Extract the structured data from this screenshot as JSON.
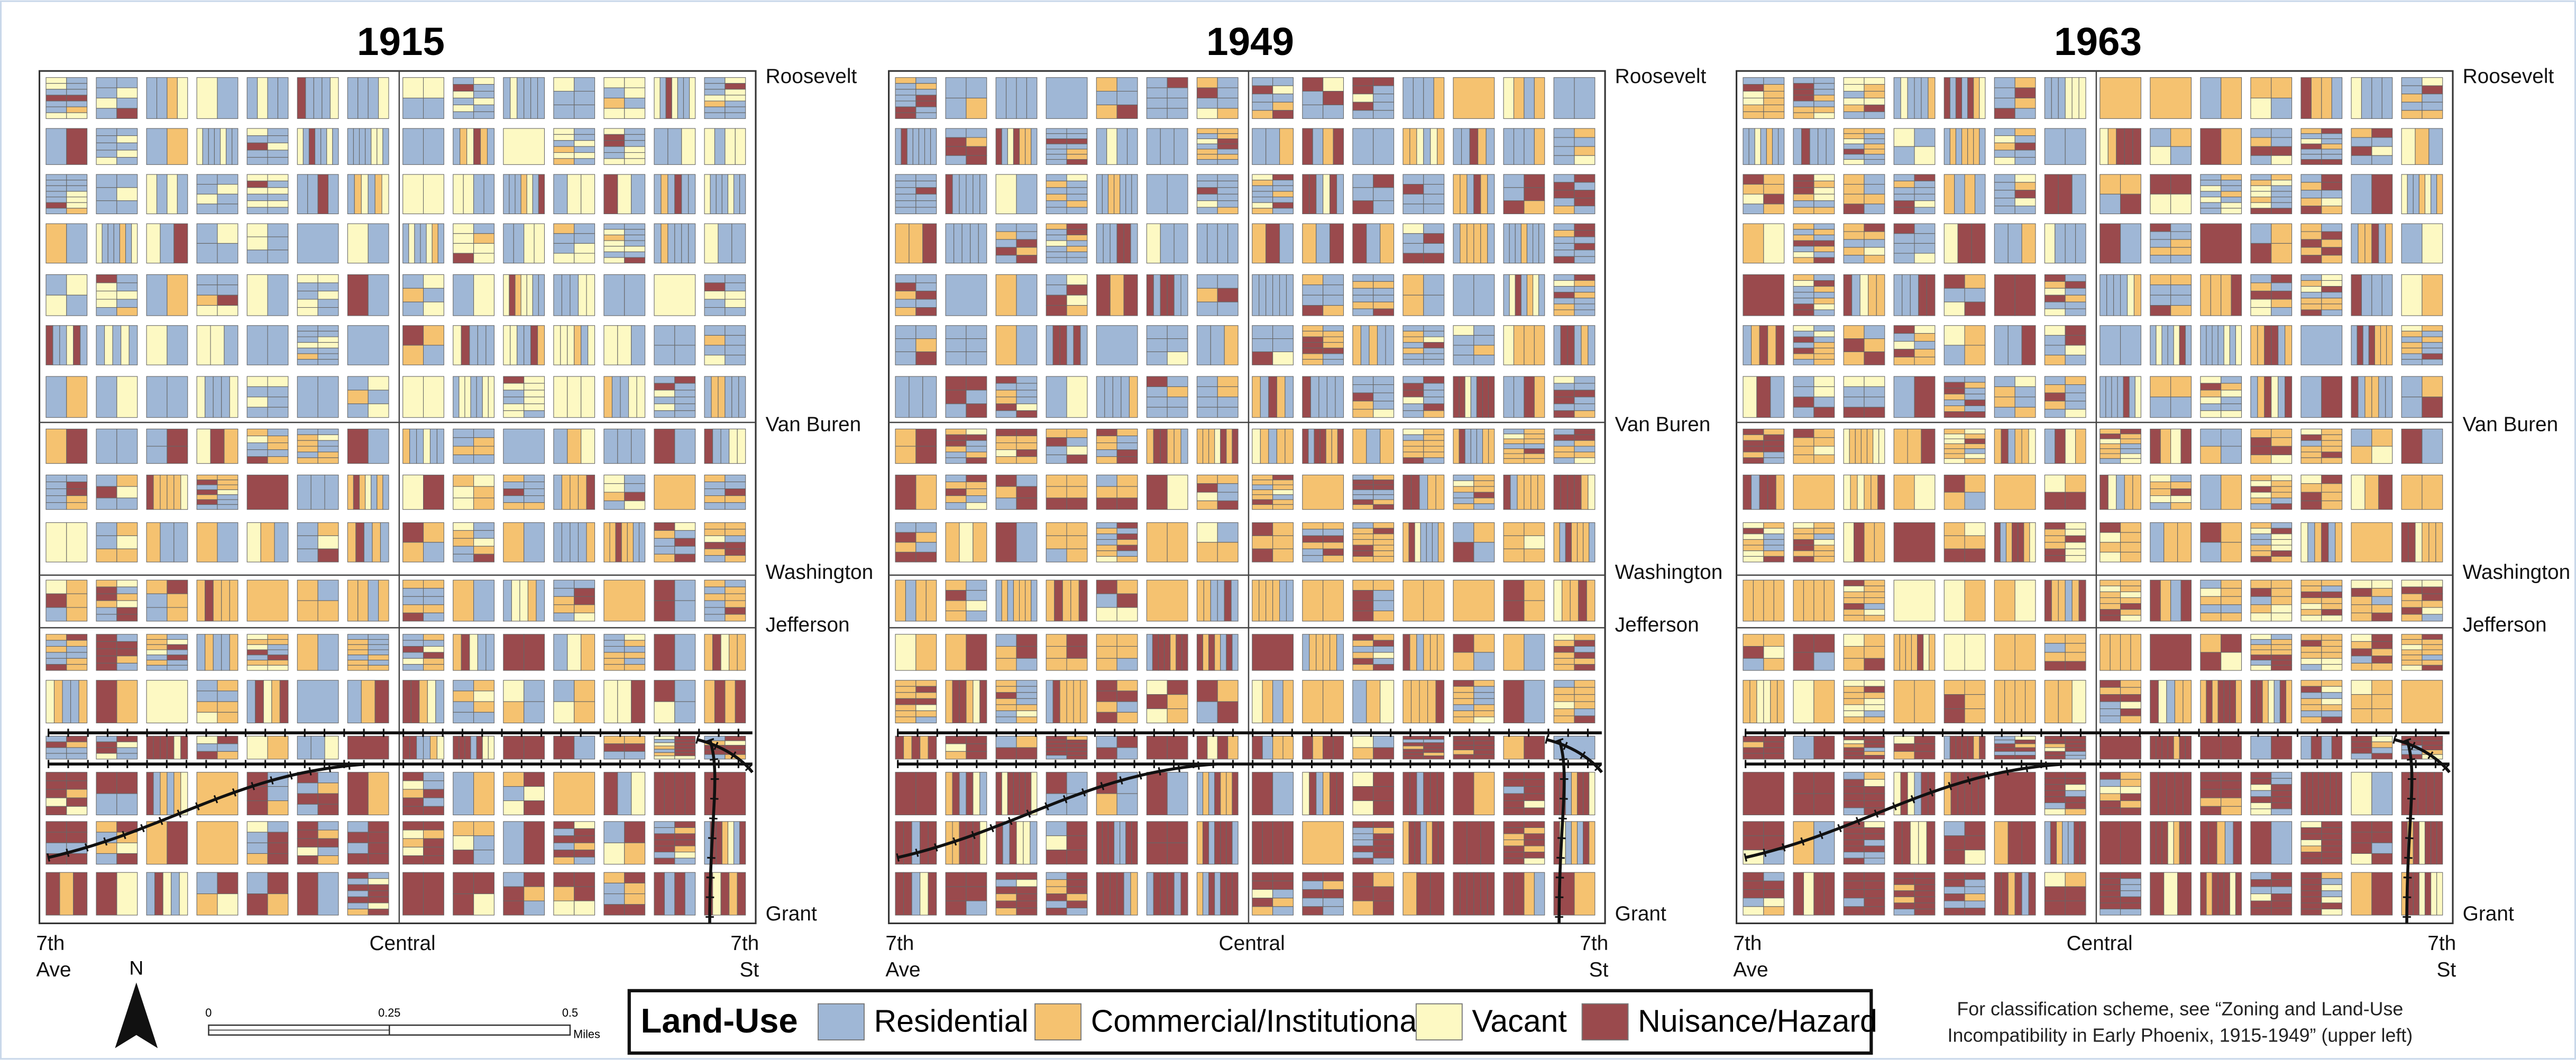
{
  "maps": [
    {
      "title": "1915"
    },
    {
      "title": "1949"
    },
    {
      "title": "1963"
    }
  ],
  "streets": {
    "east": [
      "Roosevelt",
      "Van Buren",
      "Washington",
      "Jefferson",
      "Grant"
    ],
    "west_label": [
      "7th",
      "Ave"
    ],
    "central": "Central",
    "east_label": [
      "7th",
      "St"
    ]
  },
  "north": "N",
  "scale": {
    "ticks": [
      "0",
      "0.25",
      "0.5"
    ],
    "unit": "Miles"
  },
  "legend": {
    "title": "Land-Use",
    "items": [
      {
        "label": "Residential",
        "color": "#9fb7d6"
      },
      {
        "label": "Commercial/Institutional",
        "color": "#f5c270"
      },
      {
        "label": "Vacant",
        "color": "#fdf9c3"
      },
      {
        "label": "Nuisance/Hazard",
        "color": "#9a4a4d"
      }
    ]
  },
  "note": [
    "For classification scheme, see “Zoning and Land-Use",
    "Incompatibility in Early Phoenix, 1915-1949” (upper left)"
  ]
}
